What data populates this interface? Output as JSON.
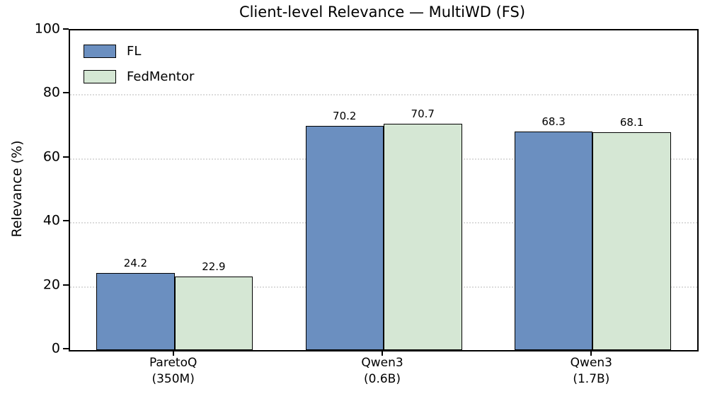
{
  "chart_data": {
    "type": "bar",
    "title": "Client-level Relevance — MultiWD (FS)",
    "xlabel": "",
    "ylabel": "Relevance (%)",
    "ylim": [
      0,
      100
    ],
    "yticks": [
      0,
      20,
      40,
      60,
      80,
      100
    ],
    "grid": {
      "axis": "y",
      "style": "dotted",
      "color": "#dcdcdc"
    },
    "legend_position": "upper-left",
    "categories": [
      "ParetoQ\n(350M)",
      "Qwen3\n(0.6B)",
      "Qwen3\n(1.7B)"
    ],
    "series": [
      {
        "name": "FL",
        "color": "#6b8fc0",
        "values": [
          24.2,
          70.2,
          68.3
        ]
      },
      {
        "name": "FedMentor",
        "color": "#d5e7d4",
        "values": [
          22.9,
          70.7,
          68.1
        ]
      }
    ],
    "bar_edge_color": "#000000",
    "value_label_decimals": 1
  },
  "colors": {
    "background": "#ffffff",
    "axis": "#000000",
    "text": "#000000"
  }
}
